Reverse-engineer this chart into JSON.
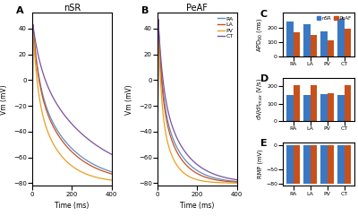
{
  "line_colors": {
    "RA": "#5b8dc8",
    "LA": "#c8501a",
    "PV": "#e8a020",
    "CT": "#7b4fa0"
  },
  "legend_labels": [
    "RA",
    "LA",
    "PV",
    "CT"
  ],
  "regions": [
    "RA",
    "LA",
    "PV",
    "CT"
  ],
  "nsr_color": "#3b78c3",
  "peaf_color": "#c8501a",
  "APD90_nSR": [
    240,
    220,
    175,
    262
  ],
  "APD90_PeAF": [
    168,
    145,
    108,
    188
  ],
  "dVdt_nSR": [
    150,
    148,
    155,
    148
  ],
  "dVdt_PeAF": [
    205,
    205,
    163,
    205
  ],
  "RMP_nSR": [
    -80,
    -80,
    -80,
    -80
  ],
  "RMP_PeAF": [
    -80,
    -80,
    -80,
    -80
  ],
  "panel_A_title": "nSR",
  "panel_B_title": "PeAF",
  "xlabel": "Time (ms)",
  "ylabel_vm": "Vm (mV)",
  "ylabel_APD": "APD$_{90}$ (ms)",
  "ylabel_dVdt": "dV/dt$_{max}$ (V/s)",
  "ylabel_RMP": "RMP (mV)",
  "panel_labels": [
    "A",
    "B",
    "C",
    "D",
    "E"
  ],
  "vm_ylim": [
    -82,
    52
  ],
  "APD_ylim": [
    0,
    300
  ],
  "dVdt_ylim": [
    0,
    250
  ],
  "RMP_ylim": [
    -85,
    5
  ],
  "nSR_peak": 43,
  "PeAF_peak": 47,
  "resting": -80,
  "nSR_tau": {
    "RA": 130,
    "LA": 120,
    "PV": 90,
    "CT": 200
  },
  "PeAF_tau": {
    "RA": 75,
    "LA": 65,
    "PV": 48,
    "CT": 90
  }
}
